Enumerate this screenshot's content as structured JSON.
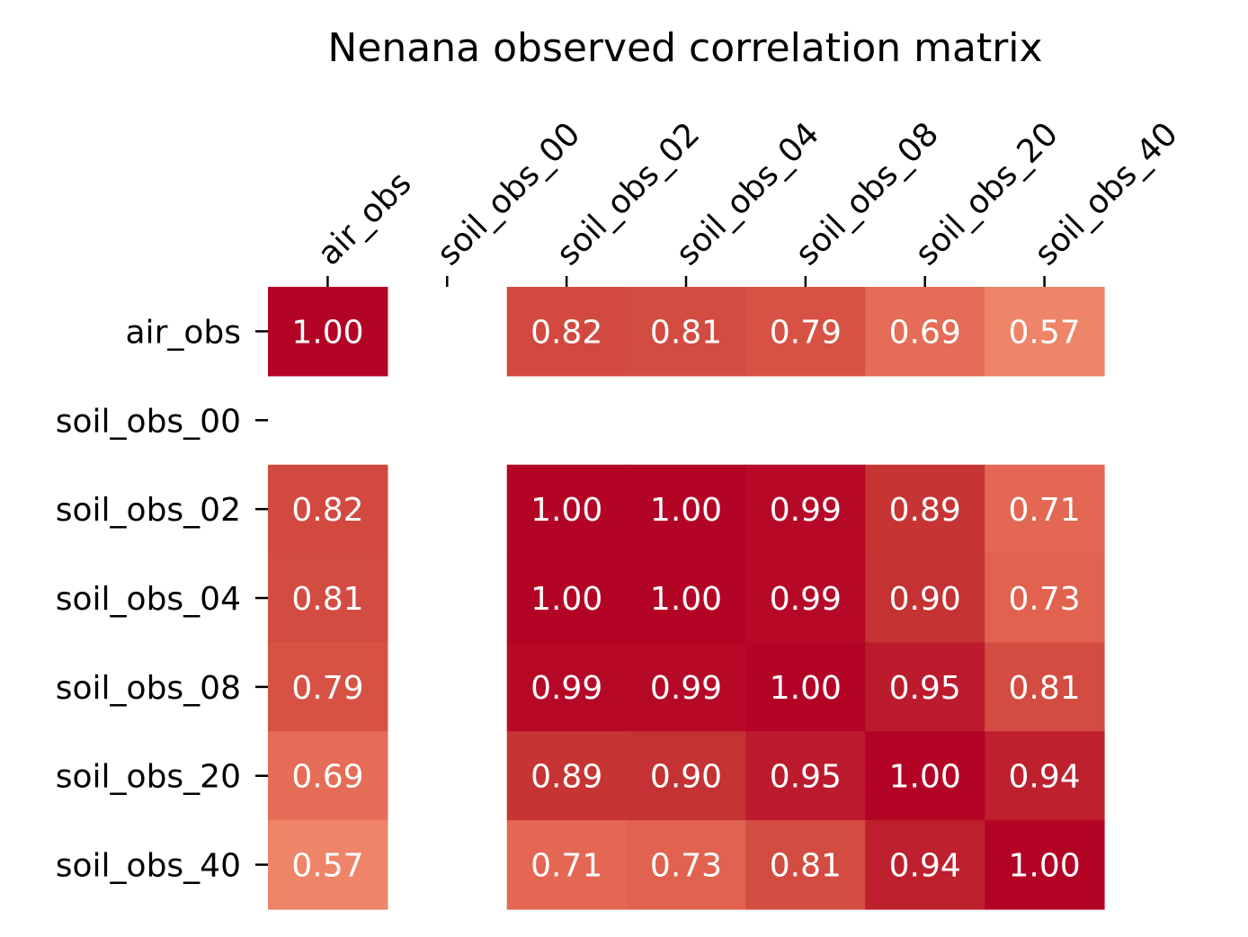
{
  "chart_data": {
    "type": "heatmap",
    "title": "Nenana observed correlation matrix",
    "x_labels": [
      "air_obs",
      "soil_obs_00",
      "soil_obs_02",
      "soil_obs_04",
      "soil_obs_08",
      "soil_obs_20",
      "soil_obs_40"
    ],
    "y_labels": [
      "air_obs",
      "soil_obs_00",
      "soil_obs_02",
      "soil_obs_04",
      "soil_obs_08",
      "soil_obs_20",
      "soil_obs_40"
    ],
    "values": [
      [
        1.0,
        null,
        0.82,
        0.81,
        0.79,
        0.69,
        0.57
      ],
      [
        null,
        null,
        null,
        null,
        null,
        null,
        null
      ],
      [
        0.82,
        null,
        1.0,
        1.0,
        0.99,
        0.89,
        0.71
      ],
      [
        0.81,
        null,
        1.0,
        1.0,
        0.99,
        0.9,
        0.73
      ],
      [
        0.79,
        null,
        0.99,
        0.99,
        1.0,
        0.95,
        0.81
      ],
      [
        0.69,
        null,
        0.89,
        0.9,
        0.95,
        1.0,
        0.94
      ],
      [
        0.57,
        null,
        0.71,
        0.73,
        0.81,
        0.94,
        1.0
      ]
    ],
    "value_format": "0.00",
    "colormap": "coolwarm",
    "vmin": -1,
    "vmax": 1,
    "x_tick_position": "top",
    "x_tick_rotation": 45,
    "colorbar": false,
    "missing_color": "#ffffff"
  }
}
